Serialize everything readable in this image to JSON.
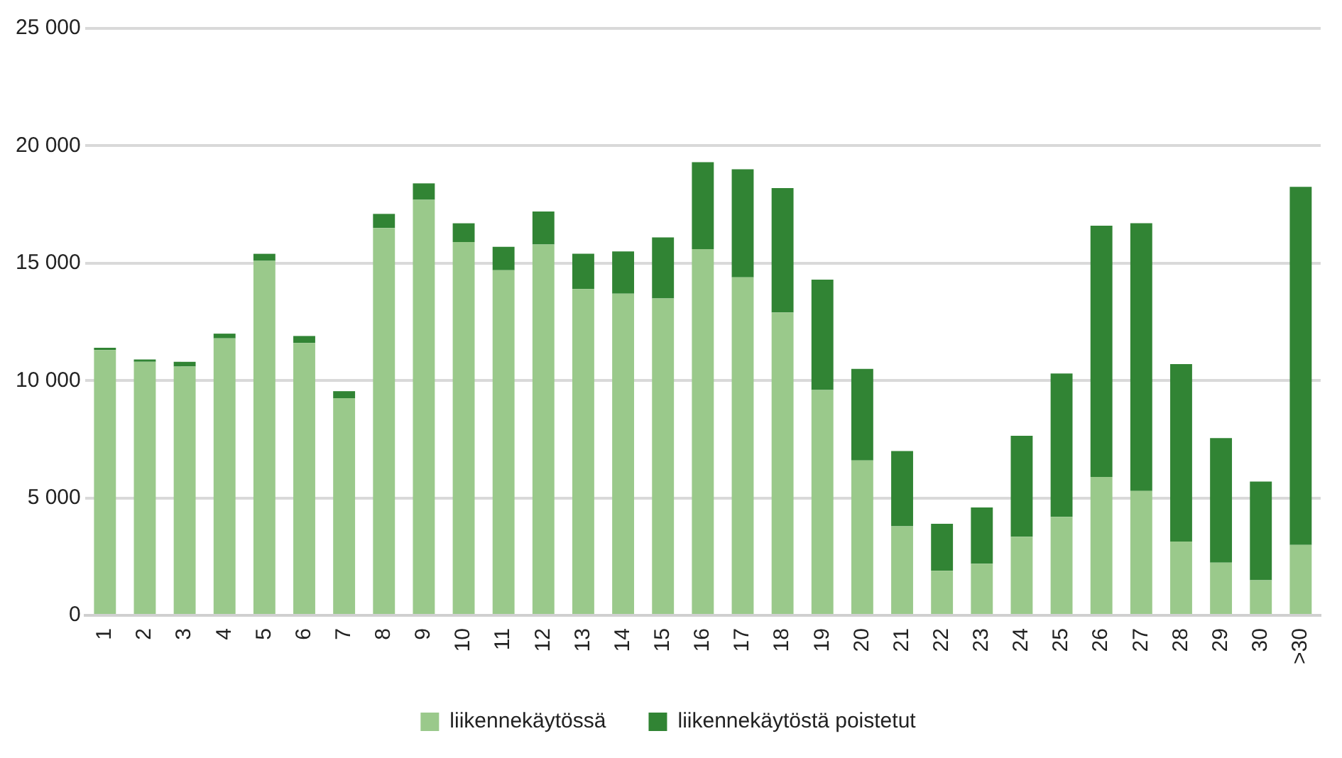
{
  "chart_data": {
    "type": "bar",
    "stacked": true,
    "categories": [
      "1",
      "2",
      "3",
      "4",
      "5",
      "6",
      "7",
      "8",
      "9",
      "10",
      "11",
      "12",
      "13",
      "14",
      "15",
      "16",
      "17",
      "18",
      "19",
      "20",
      "21",
      "22",
      "23",
      "24",
      "25",
      "26",
      "27",
      "28",
      "29",
      "30",
      ">30"
    ],
    "series": [
      {
        "name": "liikennekäytössä",
        "color": "#9ac98b",
        "values": [
          11300,
          10800,
          10600,
          11800,
          15100,
          11600,
          9250,
          16500,
          17700,
          15900,
          14700,
          15800,
          13900,
          13700,
          13500,
          15600,
          14400,
          12900,
          9600,
          6600,
          3800,
          1900,
          2200,
          3350,
          4200,
          5900,
          5300,
          3150,
          2250,
          1500,
          3000
        ]
      },
      {
        "name": "liikennekäytöstä poistetut",
        "color": "#318434",
        "values": [
          100,
          100,
          200,
          200,
          300,
          300,
          300,
          600,
          700,
          800,
          1000,
          1400,
          1500,
          1800,
          2600,
          3700,
          4600,
          5300,
          4700,
          3900,
          3200,
          2000,
          2400,
          4300,
          6100,
          10700,
          11400,
          7550,
          5300,
          4200,
          15250
        ]
      }
    ],
    "ylim": [
      0,
      25000
    ],
    "yticks": [
      {
        "value": 0,
        "label": "0"
      },
      {
        "value": 5000,
        "label": "5 000"
      },
      {
        "value": 10000,
        "label": "10 000"
      },
      {
        "value": 15000,
        "label": "15 000"
      },
      {
        "value": 20000,
        "label": "20 000"
      },
      {
        "value": 25000,
        "label": "25 000"
      }
    ],
    "grid": "y",
    "legend": "bottom"
  }
}
